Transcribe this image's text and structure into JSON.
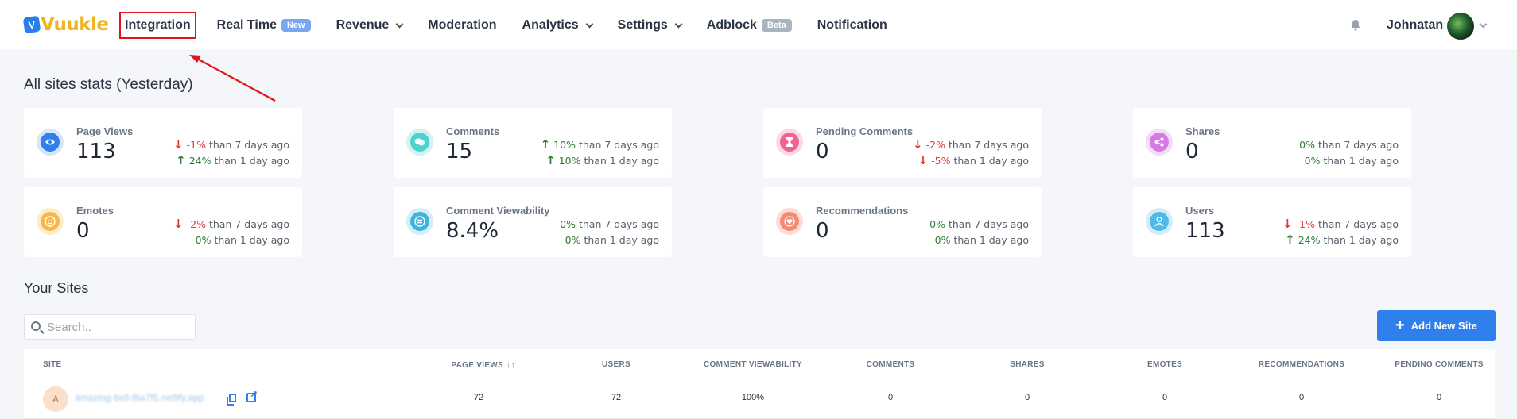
{
  "brand": {
    "badge": "V",
    "name": "Vuukle"
  },
  "nav": {
    "integration": "Integration",
    "realtime": "Real Time",
    "realtime_badge": "New",
    "revenue": "Revenue",
    "moderation": "Moderation",
    "analytics": "Analytics",
    "settings": "Settings",
    "adblock": "Adblock",
    "adblock_badge": "Beta",
    "notification": "Notification"
  },
  "user": {
    "name": "Johnatan"
  },
  "colors": {
    "accent": "#2f80ed",
    "highlight": "#e0151b",
    "down": "#e53935",
    "up": "#2e7d32"
  },
  "stats": {
    "title": "All sites stats (Yesterday)",
    "cards": [
      {
        "label": "Page Views",
        "value": "113",
        "icon": "eye-icon",
        "t1_pct": "-1%",
        "t1_text": "than 7 days ago",
        "t2_pct": "24%",
        "t2_text": "than 1 day ago"
      },
      {
        "label": "Comments",
        "value": "15",
        "icon": "chat-icon",
        "t1_pct": "10%",
        "t1_text": "than 7 days ago",
        "t2_pct": "10%",
        "t2_text": "than 1 day ago"
      },
      {
        "label": "Pending Comments",
        "value": "0",
        "icon": "hourglass-icon",
        "t1_pct": "-2%",
        "t1_text": "than 7 days ago",
        "t2_pct": "-5%",
        "t2_text": "than 1 day ago"
      },
      {
        "label": "Shares",
        "value": "0",
        "icon": "share-icon",
        "t1_pct": "0%",
        "t1_text": "than 7 days ago",
        "t2_pct": "0%",
        "t2_text": "than 1 day ago"
      },
      {
        "label": "Emotes",
        "value": "0",
        "icon": "smile-icon",
        "t1_pct": "-2%",
        "t1_text": "than 7 days ago",
        "t2_pct": "0%",
        "t2_text": "than 1 day ago"
      },
      {
        "label": "Comment Viewability",
        "value": "8.4%",
        "icon": "viewability-icon",
        "t1_pct": "0%",
        "t1_text": "than 7 days ago",
        "t2_pct": "0%",
        "t2_text": "than 1 day ago"
      },
      {
        "label": "Recommendations",
        "value": "0",
        "icon": "heart-icon",
        "t1_pct": "0%",
        "t1_text": "than 7 days ago",
        "t2_pct": "0%",
        "t2_text": "than 1 day ago"
      },
      {
        "label": "Users",
        "value": "113",
        "icon": "user-icon",
        "t1_pct": "-1%",
        "t1_text": "than 7 days ago",
        "t2_pct": "24%",
        "t2_text": "than 1 day ago"
      }
    ]
  },
  "sites": {
    "title": "Your Sites",
    "search_placeholder": "Search..",
    "add_label": "Add New Site",
    "columns": {
      "site": "SITE",
      "page_views": "PAGE VIEWS",
      "users": "USERS",
      "viewability": "COMMENT VIEWABILITY",
      "comments": "COMMENTS",
      "shares": "SHARES",
      "emotes": "EMOTES",
      "recommendations": "RECOMMENDATIONS",
      "pending": "PENDING COMMENTS"
    },
    "rows": [
      {
        "avatar": "A",
        "site": "amazing-bell-fba7f5.netlify.app",
        "page_views": "72",
        "users": "72",
        "viewability": "100%",
        "comments": "0",
        "shares": "0",
        "emotes": "0",
        "recommendations": "0",
        "pending": "0"
      }
    ]
  }
}
